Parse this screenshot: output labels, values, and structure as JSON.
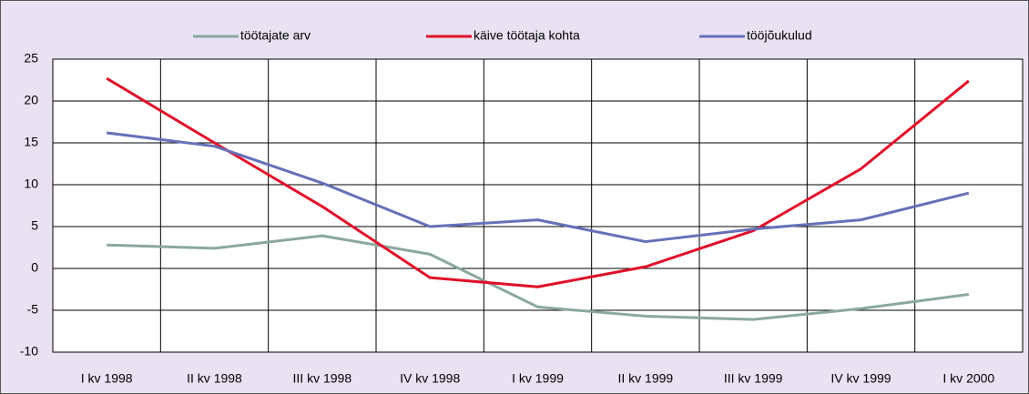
{
  "chart_data": {
    "type": "line",
    "categories": [
      "I kv 1998",
      "II kv 1998",
      "III kv 1998",
      "IV kv 1998",
      "I kv 1999",
      "II kv 1999",
      "III kv 1999",
      "IV kv 1999",
      "I kv 2000"
    ],
    "series": [
      {
        "name": "töötajate arv",
        "color": "#8aa8a0",
        "values": [
          2.8,
          2.4,
          3.9,
          1.7,
          -4.6,
          -5.7,
          -6.1,
          -4.8,
          -3.1
        ]
      },
      {
        "name": "käive töötaja kohta",
        "color": "#e0102a",
        "values": [
          22.7,
          15.0,
          7.4,
          -1.1,
          -2.2,
          0.2,
          4.5,
          11.9,
          22.4
        ]
      },
      {
        "name": "tööjõukulud",
        "color": "#6670b8",
        "values": [
          16.2,
          14.6,
          10.2,
          5.0,
          5.8,
          3.2,
          4.7,
          5.8,
          9.0
        ]
      }
    ],
    "ylim": [
      -10,
      25
    ],
    "yticks": [
      -10,
      -5,
      0,
      5,
      10,
      15,
      20,
      25
    ],
    "grid": true,
    "legend": "top"
  }
}
